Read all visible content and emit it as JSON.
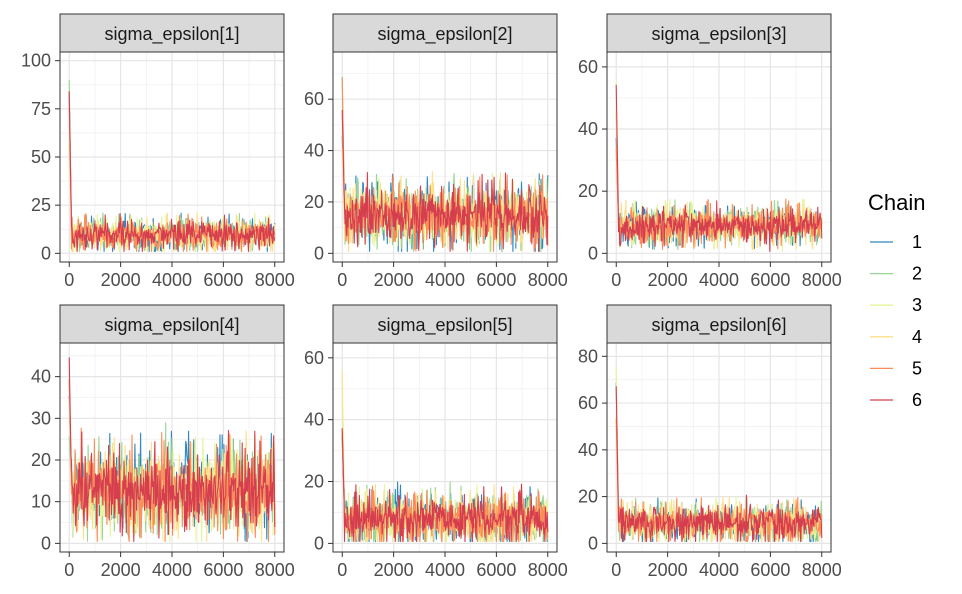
{
  "legend": {
    "title": "Chain",
    "entries": [
      {
        "label": "1",
        "color": "#3288bd"
      },
      {
        "label": "2",
        "color": "#99d594"
      },
      {
        "label": "3",
        "color": "#e6f598"
      },
      {
        "label": "4",
        "color": "#fee08b"
      },
      {
        "label": "5",
        "color": "#fc8d59"
      },
      {
        "label": "6",
        "color": "#d53e4f"
      }
    ]
  },
  "chart_data": [
    {
      "type": "line",
      "title": "sigma_epsilon[1]",
      "xlim": [
        0,
        8000
      ],
      "ylim": [
        0,
        100
      ],
      "xticks": [
        0,
        2000,
        4000,
        6000,
        8000
      ],
      "xtick_labels": [
        "0",
        "2000",
        "4000",
        "6000",
        "8000"
      ],
      "yticks": [
        0,
        25,
        50,
        75,
        100
      ],
      "ytick_labels": [
        "0",
        "25",
        "50",
        "75",
        "100"
      ],
      "grid": true,
      "initial_peak": 98,
      "stationary_mean": 10,
      "stationary_spread": 4
    },
    {
      "type": "line",
      "title": "sigma_epsilon[2]",
      "xlim": [
        0,
        8000
      ],
      "ylim": [
        0,
        75
      ],
      "xticks": [
        0,
        2000,
        4000,
        6000,
        8000
      ],
      "xtick_labels": [
        "0",
        "2000",
        "4000",
        "6000",
        "8000"
      ],
      "yticks": [
        0,
        20,
        40,
        60
      ],
      "ytick_labels": [
        "0",
        "20",
        "40",
        "60"
      ],
      "grid": true,
      "initial_peak": 73,
      "stationary_mean": 15,
      "stationary_spread": 6
    },
    {
      "type": "line",
      "title": "sigma_epsilon[3]",
      "xlim": [
        0,
        8000
      ],
      "ylim": [
        0,
        62
      ],
      "xticks": [
        0,
        2000,
        4000,
        6000,
        8000
      ],
      "xtick_labels": [
        "0",
        "2000",
        "4000",
        "6000",
        "8000"
      ],
      "yticks": [
        0,
        20,
        40,
        60
      ],
      "ytick_labels": [
        "0",
        "20",
        "40",
        "60"
      ],
      "grid": true,
      "initial_peak": 61,
      "stationary_mean": 9,
      "stationary_spread": 3
    },
    {
      "type": "line",
      "title": "sigma_epsilon[4]",
      "xlim": [
        0,
        8000
      ],
      "ylim": [
        0,
        46
      ],
      "xticks": [
        0,
        2000,
        4000,
        6000,
        8000
      ],
      "xtick_labels": [
        "0",
        "2000",
        "4000",
        "6000",
        "8000"
      ],
      "yticks": [
        0,
        10,
        20,
        30,
        40
      ],
      "ytick_labels": [
        "0",
        "10",
        "20",
        "30",
        "40"
      ],
      "grid": true,
      "initial_peak": 45,
      "stationary_mean": 13,
      "stationary_spread": 5
    },
    {
      "type": "line",
      "title": "sigma_epsilon[5]",
      "xlim": [
        0,
        8000
      ],
      "ylim": [
        0,
        62
      ],
      "xticks": [
        0,
        2000,
        4000,
        6000,
        8000
      ],
      "xtick_labels": [
        "0",
        "2000",
        "4000",
        "6000",
        "8000"
      ],
      "yticks": [
        0,
        20,
        40,
        60
      ],
      "ytick_labels": [
        "0",
        "20",
        "40",
        "60"
      ],
      "grid": true,
      "initial_peak": 59,
      "stationary_mean": 8,
      "stationary_spread": 4
    },
    {
      "type": "line",
      "title": "sigma_epsilon[6]",
      "xlim": [
        0,
        8000
      ],
      "ylim": [
        0,
        82
      ],
      "xticks": [
        0,
        2000,
        4000,
        6000,
        8000
      ],
      "xtick_labels": [
        "0",
        "2000",
        "4000",
        "6000",
        "8000"
      ],
      "yticks": [
        0,
        20,
        40,
        60,
        80
      ],
      "ytick_labels": [
        "0",
        "20",
        "40",
        "60",
        "80"
      ],
      "grid": true,
      "initial_peak": 78,
      "stationary_mean": 9,
      "stationary_spread": 4
    }
  ]
}
